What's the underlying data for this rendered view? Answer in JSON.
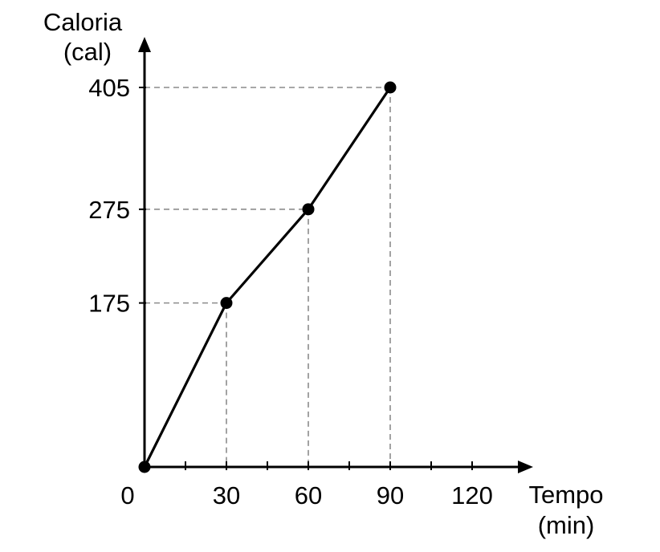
{
  "chart_data": {
    "type": "line",
    "y_title_line1": "Caloria",
    "y_title_line2": "(cal)",
    "x_title_line1": "Tempo",
    "x_title_line2": "(min)",
    "x_tick_values": [
      0,
      30,
      60,
      90,
      120
    ],
    "x_tick_labels": [
      "0",
      "30",
      "60",
      "90",
      "120"
    ],
    "x_minor_ticks": [
      15,
      45,
      75,
      105
    ],
    "y_tick_values": [
      175,
      275,
      405
    ],
    "y_tick_labels": [
      "175",
      "275",
      "405"
    ],
    "series": [
      {
        "x": [
          0,
          30,
          60,
          90
        ],
        "y": [
          0,
          175,
          275,
          405
        ]
      }
    ],
    "guides": true,
    "grid": false,
    "colors": {
      "line": "#000000",
      "guide": "#8c8c8c"
    }
  }
}
